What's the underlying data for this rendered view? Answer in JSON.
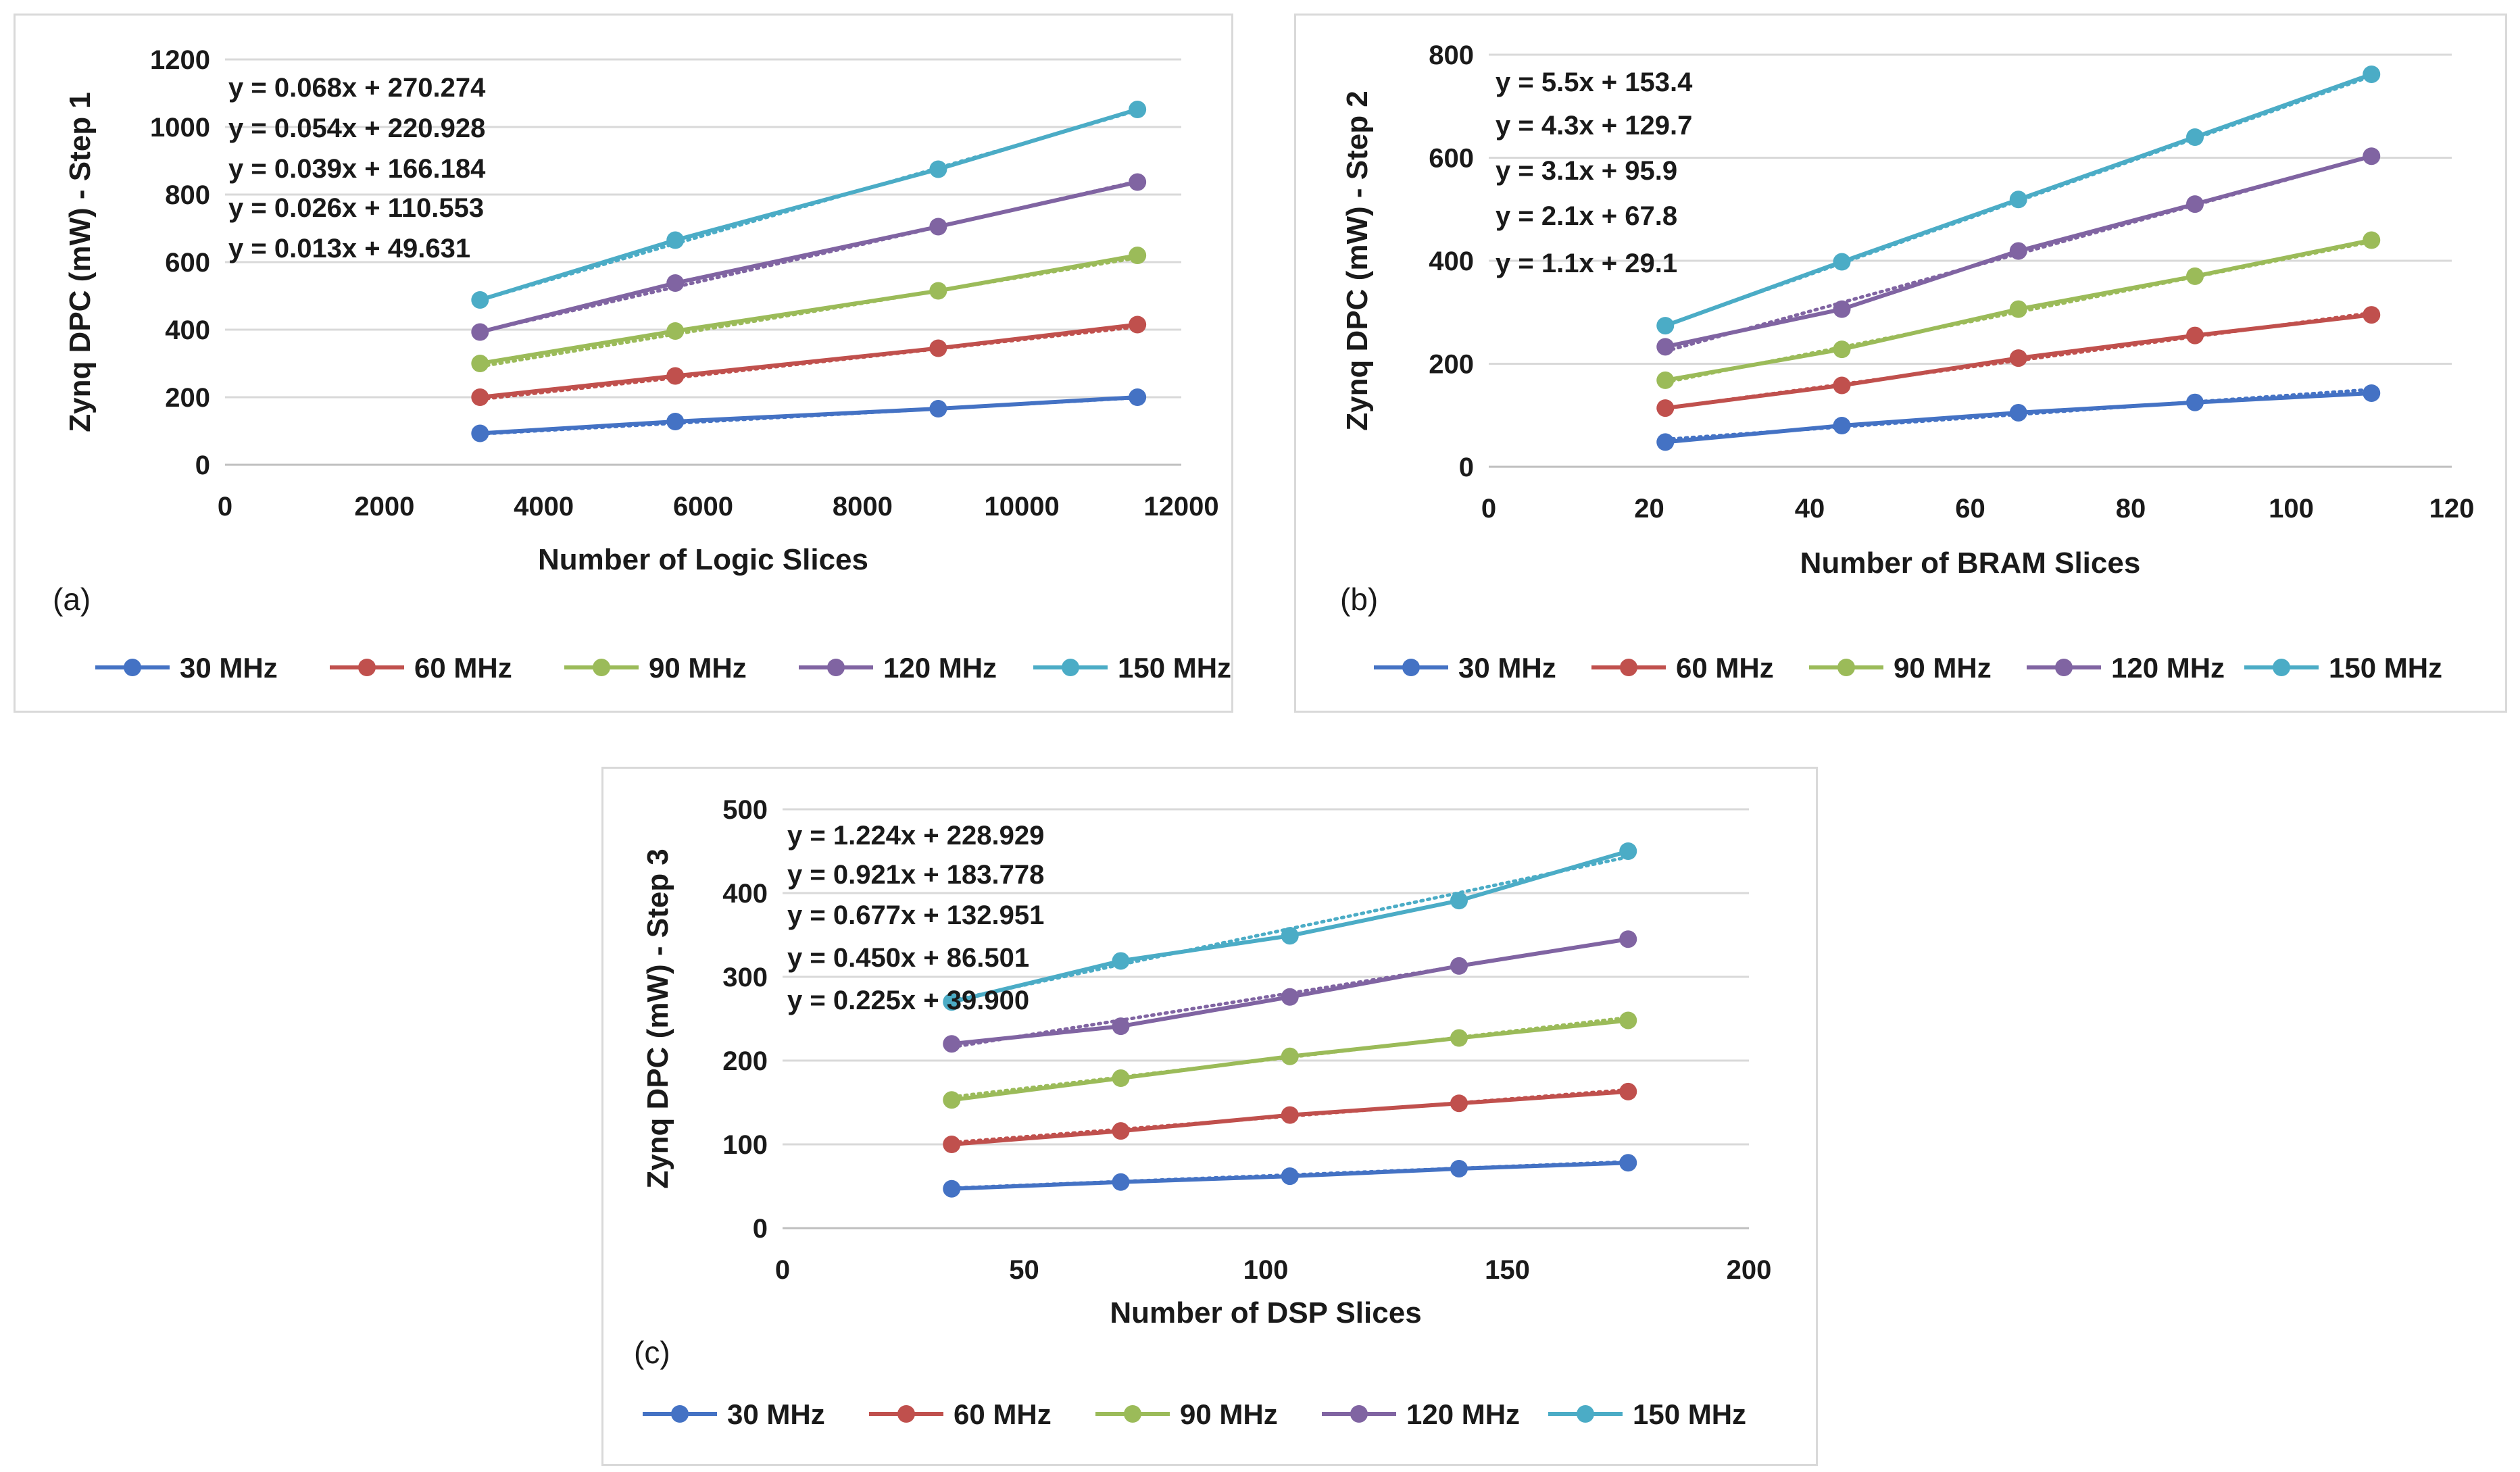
{
  "colors": {
    "30 MHz": "#4472C4",
    "60 MHz": "#C0504D",
    "90 MHz": "#9BBB59",
    "120 MHz": "#8064A2",
    "150 MHz": "#4BACC6"
  },
  "chart_data": [
    {
      "id": "a",
      "type": "line",
      "panel_label": "(a)",
      "xlabel": "Number of Logic Slices",
      "ylabel": "Zynq DPC (mW) - Step 1",
      "xlim": [
        0,
        12000
      ],
      "ylim": [
        0,
        1200
      ],
      "xticks": [
        0,
        2000,
        4000,
        6000,
        8000,
        10000,
        12000
      ],
      "yticks": [
        0,
        200,
        400,
        600,
        800,
        1000,
        1200
      ],
      "x": [
        3200,
        5650,
        8950,
        11450
      ],
      "series": [
        {
          "name": "30 MHz",
          "values": [
            93,
            128,
            166,
            200
          ]
        },
        {
          "name": "60 MHz",
          "values": [
            200,
            263,
            345,
            415
          ]
        },
        {
          "name": "90 MHz",
          "values": [
            300,
            396,
            515,
            620
          ]
        },
        {
          "name": "120 MHz",
          "values": [
            393,
            538,
            705,
            837
          ]
        },
        {
          "name": "150 MHz",
          "values": [
            488,
            665,
            875,
            1052
          ]
        }
      ],
      "trendlines": [
        {
          "name": "30 MHz",
          "slope": 0.013,
          "intercept": 49.631
        },
        {
          "name": "60 MHz",
          "slope": 0.026,
          "intercept": 110.553
        },
        {
          "name": "90 MHz",
          "slope": 0.039,
          "intercept": 166.184
        },
        {
          "name": "120 MHz",
          "slope": 0.054,
          "intercept": 220.928
        },
        {
          "name": "150 MHz",
          "slope": 0.068,
          "intercept": 270.274
        }
      ],
      "equations": [
        "y = 0.068x + 270.274",
        "y = 0.054x + 220.928",
        "y = 0.039x + 166.184",
        "y = 0.026x + 110.553",
        "y = 0.013x + 49.631"
      ],
      "legend": [
        "30 MHz",
        "60 MHz",
        "90 MHz",
        "120 MHz",
        "150 MHz"
      ]
    },
    {
      "id": "b",
      "type": "line",
      "panel_label": "(b)",
      "xlabel": "Number of BRAM  Slices",
      "ylabel": "Zynq DPC (mW) - Step 2",
      "xlim": [
        0,
        120
      ],
      "ylim": [
        0,
        800
      ],
      "xticks": [
        0,
        20,
        40,
        60,
        80,
        100,
        120
      ],
      "yticks": [
        0,
        200,
        400,
        600,
        800
      ],
      "x": [
        22,
        44,
        66,
        88,
        110
      ],
      "series": [
        {
          "name": "30 MHz",
          "values": [
            48,
            80,
            105,
            125,
            143
          ]
        },
        {
          "name": "60 MHz",
          "values": [
            114,
            158,
            211,
            255,
            295
          ]
        },
        {
          "name": "90 MHz",
          "values": [
            168,
            228,
            306,
            370,
            440
          ]
        },
        {
          "name": "120 MHz",
          "values": [
            233,
            306,
            419,
            510,
            603
          ]
        },
        {
          "name": "150 MHz",
          "values": [
            274,
            398,
            519,
            640,
            762
          ]
        }
      ],
      "trendlines": [
        {
          "name": "30 MHz",
          "slope": 1.1,
          "intercept": 29.1
        },
        {
          "name": "60 MHz",
          "slope": 2.1,
          "intercept": 67.8
        },
        {
          "name": "90 MHz",
          "slope": 3.1,
          "intercept": 95.9
        },
        {
          "name": "120 MHz",
          "slope": 4.3,
          "intercept": 129.7
        },
        {
          "name": "150 MHz",
          "slope": 5.5,
          "intercept": 153.4
        }
      ],
      "equations": [
        "y = 5.5x + 153.4",
        "y = 4.3x + 129.7",
        "y = 3.1x + 95.9",
        "y = 2.1x + 67.8",
        "y = 1.1x + 29.1"
      ],
      "legend": [
        "30 MHz",
        "60 MHz",
        "90 MHz",
        "120 MHz",
        "150 MHz"
      ]
    },
    {
      "id": "c",
      "type": "line",
      "panel_label": "(c)",
      "xlabel": "Number of DSP Slices",
      "ylabel": "Zynq DPC (mW) - Step 3",
      "xlim": [
        0,
        200
      ],
      "ylim": [
        0,
        500
      ],
      "xticks": [
        0,
        50,
        100,
        150,
        200
      ],
      "yticks": [
        0,
        100,
        200,
        300,
        400,
        500
      ],
      "x": [
        35,
        70,
        105,
        140,
        175
      ],
      "series": [
        {
          "name": "30 MHz",
          "values": [
            47,
            55,
            62,
            71,
            78
          ]
        },
        {
          "name": "60 MHz",
          "values": [
            100,
            116,
            135,
            149,
            163
          ]
        },
        {
          "name": "90 MHz",
          "values": [
            153,
            179,
            205,
            227,
            248
          ]
        },
        {
          "name": "120 MHz",
          "values": [
            220,
            241,
            276,
            313,
            345
          ]
        },
        {
          "name": "150 MHz",
          "values": [
            270,
            319,
            349,
            391,
            450
          ]
        }
      ],
      "trendlines": [
        {
          "name": "30 MHz",
          "slope": 0.225,
          "intercept": 39.9
        },
        {
          "name": "60 MHz",
          "slope": 0.45,
          "intercept": 86.501
        },
        {
          "name": "90 MHz",
          "slope": 0.677,
          "intercept": 132.951
        },
        {
          "name": "120 MHz",
          "slope": 0.921,
          "intercept": 183.778
        },
        {
          "name": "150 MHz",
          "slope": 1.224,
          "intercept": 228.929
        }
      ],
      "equations": [
        "y = 1.224x + 228.929",
        "y = 0.921x + 183.778",
        "y = 0.677x + 132.951",
        "y = 0.450x + 86.501",
        "y = 0.225x + 39.900"
      ],
      "legend": [
        "30 MHz",
        "60 MHz",
        "90 MHz",
        "120 MHz",
        "150 MHz"
      ]
    }
  ]
}
